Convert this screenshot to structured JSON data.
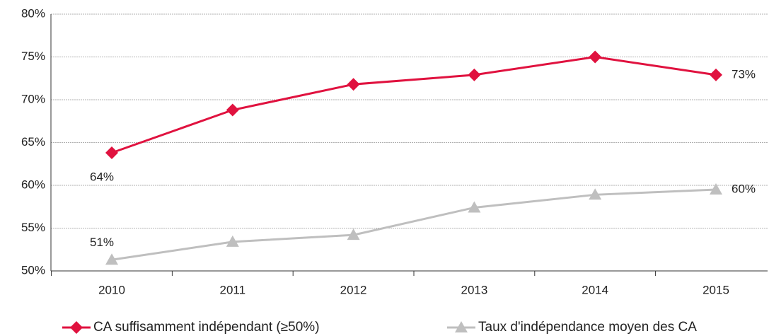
{
  "chart_data": {
    "type": "line",
    "categories": [
      "2010",
      "2011",
      "2012",
      "2013",
      "2014",
      "2015"
    ],
    "series": [
      {
        "name": "CA suffisamment indépendant (≥50%)",
        "color": "#e0123f",
        "marker": "diamond",
        "values": [
          63.8,
          68.8,
          71.8,
          72.9,
          75.0,
          72.9
        ],
        "value_labels": [
          "64%",
          null,
          null,
          null,
          null,
          "73%"
        ]
      },
      {
        "name": "Taux d'indépendance moyen des CA",
        "color": "#bfbfbf",
        "marker": "triangle",
        "values": [
          51.3,
          53.4,
          54.2,
          57.4,
          58.9,
          59.5
        ],
        "value_labels": [
          "51%",
          null,
          null,
          null,
          null,
          "60%"
        ]
      }
    ],
    "ylim": [
      50,
      80
    ],
    "yticks": [
      {
        "value": 50,
        "label": "50%"
      },
      {
        "value": 55,
        "label": "55%"
      },
      {
        "value": 60,
        "label": "60%"
      },
      {
        "value": 65,
        "label": "65%"
      },
      {
        "value": 70,
        "label": "70%"
      },
      {
        "value": 75,
        "label": "75%"
      },
      {
        "value": 80,
        "label": "80%"
      }
    ],
    "grid": true,
    "legend": "bottom"
  }
}
